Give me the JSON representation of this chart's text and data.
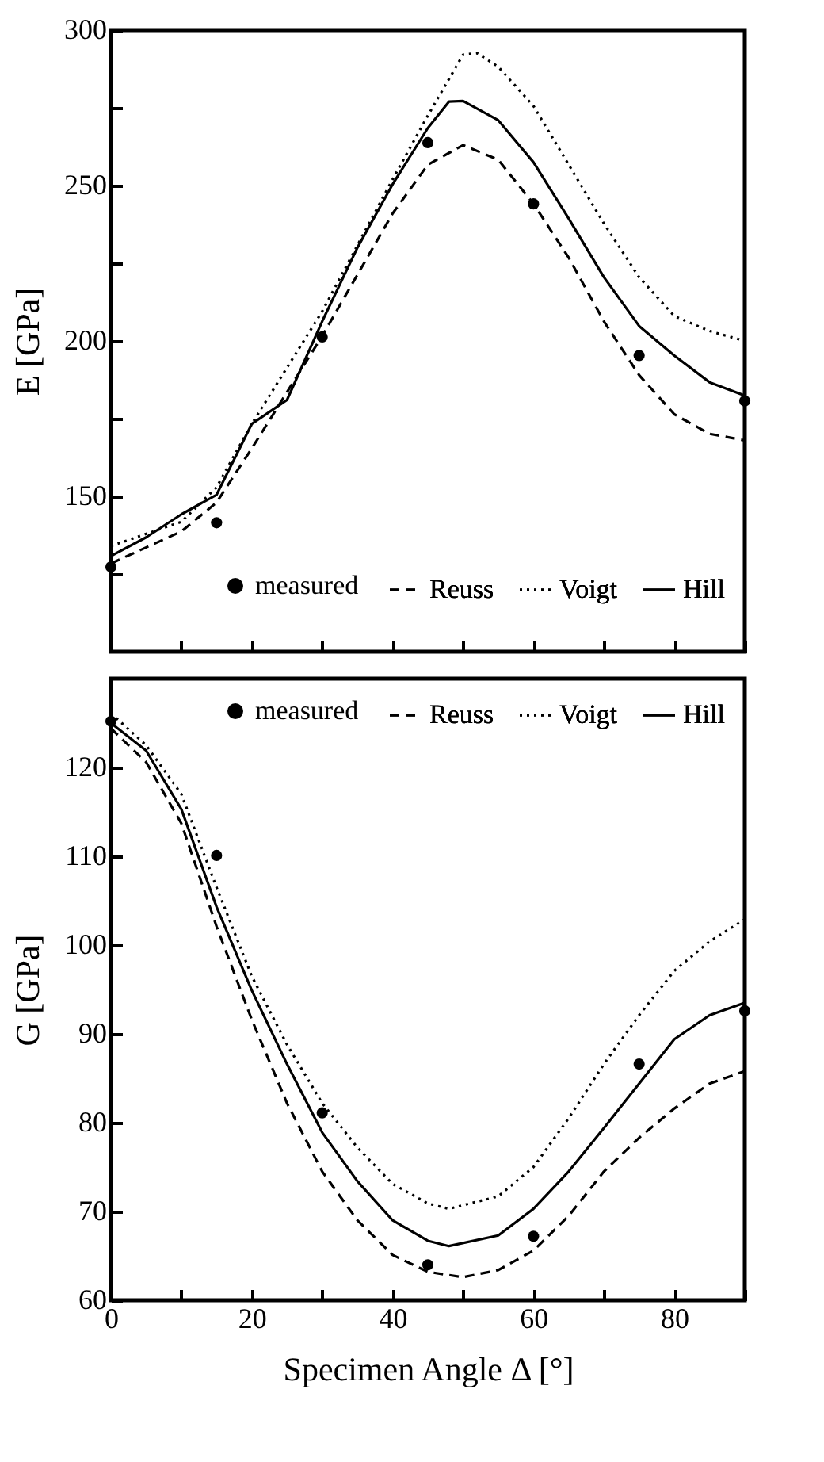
{
  "chart_data": [
    {
      "type": "line",
      "ylabel": "E [GPa]",
      "xlim": [
        0,
        90
      ],
      "ylim": [
        100,
        300
      ],
      "xticks": [
        0,
        10,
        20,
        30,
        40,
        50,
        60,
        70,
        80,
        90
      ],
      "yticks": [
        {
          "value": 125,
          "label": null
        },
        150,
        {
          "value": 175,
          "label": null
        },
        200,
        {
          "value": 225,
          "label": null
        },
        250,
        {
          "value": 275,
          "label": null
        },
        300
      ],
      "tick_labels": "y",
      "legend": "bottom",
      "grid": false,
      "series": [
        {
          "name": "measured",
          "type": "scatter",
          "marker": "circle",
          "color": "#000000",
          "x": [
            0,
            15,
            30,
            45,
            60,
            75,
            90
          ],
          "values": [
            127.3,
            141.5,
            201.3,
            263.8,
            244.1,
            195.3,
            180.7
          ]
        },
        {
          "name": "Reuss",
          "type": "line",
          "line_style": "dashed",
          "color": "#000000",
          "x": [
            0,
            10,
            15,
            20,
            30,
            40,
            45,
            50,
            55,
            60,
            65,
            70,
            75,
            80,
            85,
            90
          ],
          "values": [
            128.4,
            138.7,
            148,
            165.4,
            201.6,
            241,
            256.7,
            263,
            258.3,
            244.1,
            226.8,
            206.3,
            189,
            176.4,
            170.1,
            168
          ]
        },
        {
          "name": "Voigt",
          "type": "line",
          "line_style": "dotted",
          "color": "#000000",
          "x": [
            0,
            10,
            15,
            20,
            30,
            40,
            45,
            50,
            52,
            55,
            60,
            65,
            70,
            75,
            80,
            85,
            90
          ],
          "values": [
            134,
            141.8,
            152.9,
            173.3,
            209.5,
            252,
            272.5,
            292.1,
            292.6,
            288.2,
            275.6,
            256.7,
            237.8,
            220.5,
            208,
            203.2,
            200
          ]
        },
        {
          "name": "Hill",
          "type": "line",
          "line_style": "solid",
          "color": "#000000",
          "x": [
            0,
            5,
            10,
            15,
            20,
            25,
            30,
            35,
            40,
            45,
            48,
            50,
            55,
            60,
            65,
            70,
            75,
            80,
            85,
            90
          ],
          "values": [
            130.8,
            136.8,
            144.2,
            150.5,
            173.3,
            181,
            206.3,
            230,
            250.4,
            268.5,
            277,
            277.2,
            271,
            257.5,
            239.4,
            220.5,
            204.8,
            195.3,
            186.7,
            182.4
          ]
        }
      ]
    },
    {
      "type": "line",
      "xlabel": "Specimen Angle Δ [°]",
      "ylabel": "G [GPa]",
      "xlim": [
        0,
        90
      ],
      "ylim": [
        60,
        130
      ],
      "xticks": [
        0,
        {
          "value": 10,
          "label": null
        },
        20,
        {
          "value": 30,
          "label": null
        },
        40,
        {
          "value": 50,
          "label": null
        },
        60,
        {
          "value": 70,
          "label": null
        },
        80,
        {
          "value": 90,
          "label": null
        }
      ],
      "yticks": [
        60,
        70,
        80,
        90,
        100,
        110,
        120
      ],
      "legend": "top",
      "grid": false,
      "series": [
        {
          "name": "measured",
          "type": "scatter",
          "marker": "circle",
          "color": "#000000",
          "x": [
            0,
            15,
            30,
            45,
            60,
            75,
            90
          ],
          "values": [
            125.2,
            110.1,
            81.1,
            64,
            67.2,
            86.6,
            92.6
          ]
        },
        {
          "name": "Reuss",
          "type": "line",
          "line_style": "dashed",
          "color": "#000000",
          "x": [
            0,
            5,
            10,
            15,
            20,
            25,
            30,
            35,
            40,
            45,
            50,
            55,
            60,
            65,
            70,
            75,
            80,
            85,
            90
          ],
          "values": [
            124.4,
            120.6,
            113.7,
            102.1,
            91.6,
            82.2,
            74.5,
            69,
            65.1,
            63.2,
            62.6,
            63.4,
            65.6,
            69.5,
            74.5,
            78.3,
            81.6,
            84.4,
            85.8
          ]
        },
        {
          "name": "Voigt",
          "type": "line",
          "line_style": "dotted",
          "color": "#000000",
          "x": [
            0,
            5,
            10,
            15,
            20,
            25,
            30,
            35,
            40,
            45,
            48,
            55,
            60,
            65,
            70,
            75,
            80,
            85,
            90
          ],
          "values": [
            126.1,
            122.5,
            117,
            106.5,
            96.5,
            88.8,
            82.2,
            77.2,
            73.1,
            70.9,
            70.3,
            71.7,
            75,
            80.5,
            86.6,
            92.1,
            97.1,
            100.4,
            102.9
          ]
        },
        {
          "name": "Hill",
          "type": "line",
          "line_style": "solid",
          "color": "#000000",
          "x": [
            0,
            5,
            10,
            15,
            20,
            25,
            30,
            35,
            40,
            45,
            48,
            55,
            60,
            65,
            70,
            75,
            80,
            85,
            90
          ],
          "values": [
            125,
            121.9,
            115.3,
            104.3,
            94.9,
            86.6,
            78.9,
            73.4,
            69,
            66.7,
            66.1,
            67.3,
            70.3,
            74.5,
            79.4,
            84.4,
            89.4,
            92.1,
            93.5
          ]
        }
      ]
    }
  ]
}
